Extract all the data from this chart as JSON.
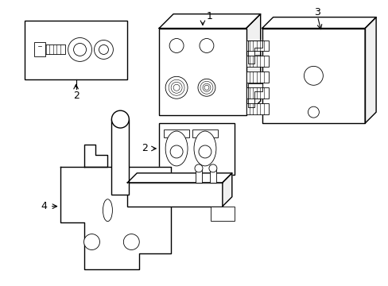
{
  "background_color": "#ffffff",
  "line_color": "#000000",
  "lw": 1.0,
  "tlw": 0.6,
  "figsize": [
    4.89,
    3.6
  ],
  "dpi": 100
}
